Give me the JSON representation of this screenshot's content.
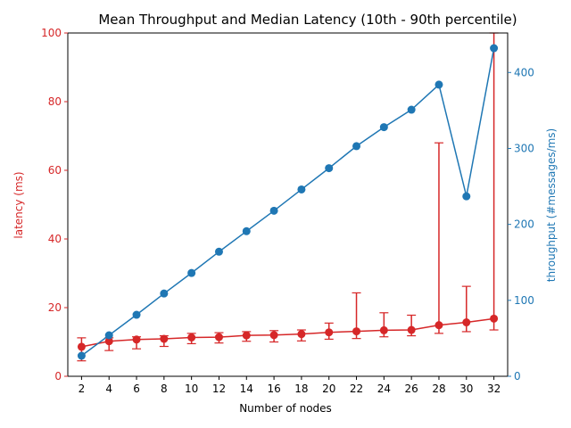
{
  "chart_data": {
    "type": "line",
    "title": "Mean Throughput and Median Latency (10th - 90th percentile)",
    "xlabel": "Number of nodes",
    "x": [
      2,
      4,
      6,
      8,
      10,
      12,
      14,
      16,
      18,
      20,
      22,
      24,
      26,
      28,
      30,
      32
    ],
    "xticks": [
      "2",
      "4",
      "6",
      "8",
      "10",
      "12",
      "14",
      "16",
      "18",
      "20",
      "22",
      "24",
      "26",
      "28",
      "30",
      "32"
    ],
    "left_axis": {
      "label": "latency (ms)",
      "ylim": [
        0,
        100
      ],
      "ticks": [
        "0",
        "20",
        "40",
        "60",
        "80",
        "100"
      ],
      "color": "#d62728"
    },
    "right_axis": {
      "label": "throughput (#messages/ms)",
      "ylim": [
        0,
        452
      ],
      "ticks": [
        "0",
        "100",
        "200",
        "300",
        "400"
      ],
      "color": "#1f77b4"
    },
    "series": [
      {
        "axis": "left",
        "color": "#d62728",
        "values": [
          8.6,
          10.2,
          10.7,
          10.9,
          11.3,
          11.4,
          11.9,
          12.0,
          12.3,
          12.8,
          13.1,
          13.4,
          13.5,
          14.9,
          15.7,
          16.8
        ],
        "err_low": [
          4.5,
          7.5,
          8.0,
          8.7,
          9.5,
          9.7,
          10.2,
          10.0,
          10.3,
          10.8,
          11.0,
          11.5,
          11.8,
          12.5,
          13.0,
          13.5
        ],
        "err_high": [
          11.2,
          11.2,
          11.5,
          11.8,
          12.5,
          12.7,
          13.0,
          13.3,
          13.5,
          15.5,
          24.3,
          18.5,
          17.8,
          68.0,
          26.2,
          100.0
        ]
      },
      {
        "axis": "right",
        "color": "#1f77b4",
        "values": [
          27,
          54,
          81,
          109,
          136,
          164,
          191,
          218,
          246,
          274,
          303,
          328,
          351,
          384,
          237,
          432
        ]
      }
    ],
    "grid": false
  }
}
